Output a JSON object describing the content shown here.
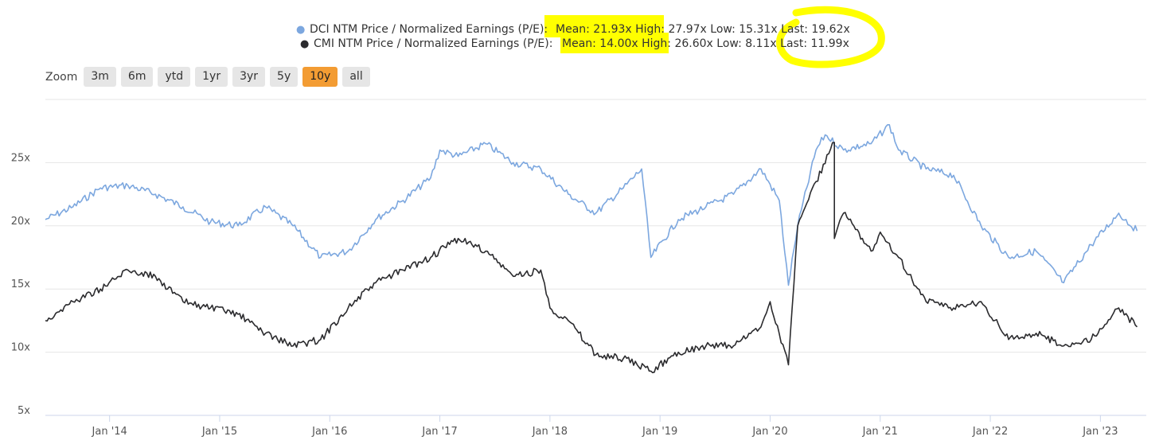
{
  "legend": [
    {
      "marker": "●",
      "name": "DCI NTM Price / Normalized Earnings (P/E):",
      "stats": "Mean: 21.93x High: 27.97x Low: 15.31x Last: 19.62x",
      "color": "#7ca7df"
    },
    {
      "marker": "●",
      "name": "CMI NTM Price / Normalized Earnings (P/E):",
      "stats": "Mean: 14.00x High: 26.60x Low: 8.11x Last: 11.99x",
      "color": "#2b2b2e"
    }
  ],
  "zoom": {
    "label": "Zoom",
    "buttons": [
      {
        "label": "3m",
        "active": false
      },
      {
        "label": "6m",
        "active": false
      },
      {
        "label": "ytd",
        "active": false
      },
      {
        "label": "1yr",
        "active": false
      },
      {
        "label": "3yr",
        "active": false
      },
      {
        "label": "5y",
        "active": false
      },
      {
        "label": "10y",
        "active": true
      },
      {
        "label": "all",
        "active": false
      }
    ]
  },
  "colors": {
    "highlight": "#ffff00",
    "active_button": "#f39c33",
    "grid": "#e6e6e6"
  },
  "chart_data": {
    "type": "line",
    "x_range": [
      "2013-06",
      "2023-06"
    ],
    "ylim": [
      5,
      30
    ],
    "y_ticks": [
      {
        "value": 5,
        "label": "5x"
      },
      {
        "value": 10,
        "label": "10x"
      },
      {
        "value": 15,
        "label": "15x"
      },
      {
        "value": 20,
        "label": "20x"
      },
      {
        "value": 25,
        "label": "25x"
      }
    ],
    "x_ticks": [
      {
        "value": "2014-01",
        "label": "Jan '14"
      },
      {
        "value": "2015-01",
        "label": "Jan '15"
      },
      {
        "value": "2016-01",
        "label": "Jan '16"
      },
      {
        "value": "2017-01",
        "label": "Jan '17"
      },
      {
        "value": "2018-01",
        "label": "Jan '18"
      },
      {
        "value": "2019-01",
        "label": "Jan '19"
      },
      {
        "value": "2020-01",
        "label": "Jan '20"
      },
      {
        "value": "2021-01",
        "label": "Jan '21"
      },
      {
        "value": "2022-01",
        "label": "Jan '22"
      },
      {
        "value": "2023-01",
        "label": "Jan '23"
      }
    ],
    "grid": true,
    "series": [
      {
        "name": "DCI NTM Price / Normalized Earnings (P/E)",
        "color": "#7ca7df",
        "x": [
          "2013-06",
          "2013-09",
          "2013-12",
          "2014-03",
          "2014-06",
          "2014-09",
          "2014-12",
          "2015-03",
          "2015-06",
          "2015-09",
          "2015-12",
          "2016-03",
          "2016-06",
          "2016-09",
          "2016-12",
          "2017-01",
          "2017-03",
          "2017-06",
          "2017-09",
          "2017-12",
          "2018-03",
          "2018-06",
          "2018-09",
          "2018-11",
          "2018-12",
          "2019-03",
          "2019-06",
          "2019-09",
          "2019-12",
          "2020-02",
          "2020-03",
          "2020-04",
          "2020-06",
          "2020-07",
          "2020-09",
          "2020-12",
          "2021-02",
          "2021-03",
          "2021-06",
          "2021-09",
          "2021-12",
          "2022-03",
          "2022-06",
          "2022-09",
          "2022-12",
          "2023-03",
          "2023-05"
        ],
        "y": [
          20.5,
          21.5,
          23,
          23.2,
          22.5,
          21.5,
          20.3,
          20,
          21.5,
          20,
          17.5,
          18,
          20.5,
          22,
          23.8,
          26,
          25.5,
          26.5,
          25,
          24.5,
          22.5,
          21,
          23,
          24.5,
          17.5,
          20.5,
          21.5,
          22.5,
          24.5,
          22,
          15.3,
          20,
          26,
          27.2,
          26,
          26.5,
          28,
          26,
          24.5,
          24,
          20,
          17.5,
          18,
          15.5,
          18.5,
          21,
          19.6
        ]
      },
      {
        "name": "CMI NTM Price / Normalized Earnings (P/E)",
        "color": "#2b2b2e",
        "x": [
          "2013-06",
          "2013-09",
          "2013-12",
          "2014-03",
          "2014-06",
          "2014-09",
          "2014-12",
          "2015-03",
          "2015-06",
          "2015-09",
          "2015-12",
          "2016-03",
          "2016-06",
          "2016-09",
          "2016-12",
          "2017-03",
          "2017-06",
          "2017-09",
          "2017-12",
          "2018-01",
          "2018-03",
          "2018-06",
          "2018-09",
          "2018-12",
          "2019-03",
          "2019-06",
          "2019-09",
          "2019-12",
          "2020-01",
          "2020-03",
          "2020-04",
          "2020-06",
          "2020-08",
          "2020-08",
          "2020-09",
          "2020-12",
          "2021-01",
          "2021-03",
          "2021-06",
          "2021-09",
          "2021-12",
          "2022-03",
          "2022-06",
          "2022-09",
          "2022-12",
          "2023-03",
          "2023-05"
        ],
        "y": [
          12.5,
          14,
          15,
          16.5,
          16,
          14,
          13.5,
          13,
          11.5,
          10.5,
          11,
          13.5,
          15.5,
          16.5,
          17.5,
          19,
          18,
          16,
          16.5,
          13.5,
          12.5,
          9.8,
          9.5,
          8.5,
          10,
          10.5,
          10.5,
          12,
          14,
          9,
          20,
          23.5,
          26.6,
          19,
          21,
          18,
          19.5,
          17.5,
          14,
          13.5,
          14,
          11,
          11.5,
          10.5,
          11,
          13.5,
          12
        ]
      }
    ]
  }
}
